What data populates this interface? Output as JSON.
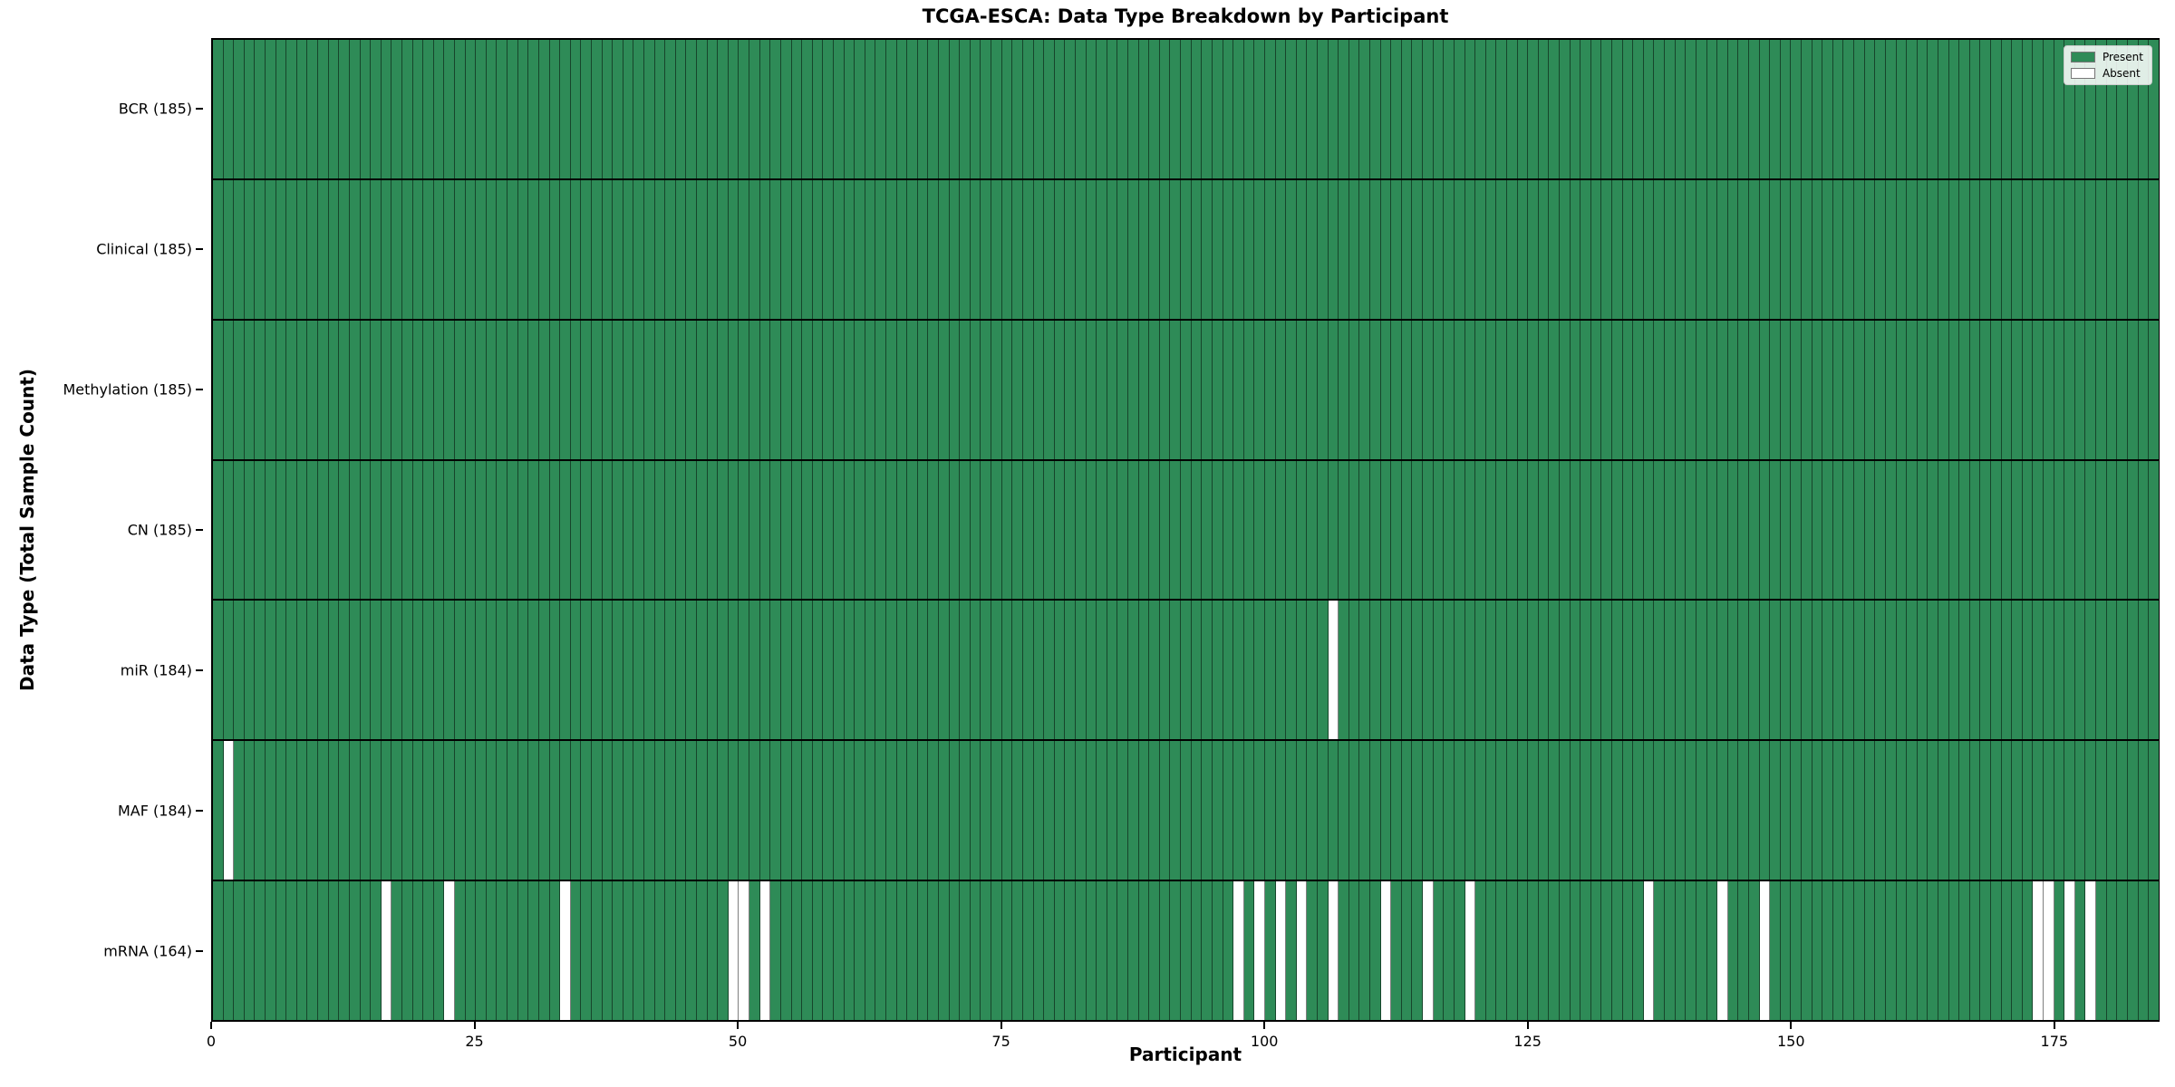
{
  "chart_data": {
    "type": "heatmap",
    "title": "TCGA-ESCA: Data Type Breakdown by Participant",
    "xlabel": "Participant",
    "ylabel": "Data Type (Total Sample Count)",
    "n_participants": 185,
    "x_ticks": [
      0,
      25,
      50,
      75,
      100,
      125,
      150,
      175
    ],
    "grid": "cell-borders",
    "legend_position": "upper-right",
    "legend": [
      {
        "label": "Present",
        "color": "#2e8b57"
      },
      {
        "label": "Absent",
        "color": "#ffffff"
      }
    ],
    "rows": [
      {
        "label": "BCR (185)",
        "total": 185,
        "absent_participants": []
      },
      {
        "label": "Clinical (185)",
        "total": 185,
        "absent_participants": []
      },
      {
        "label": "Methylation (185)",
        "total": 185,
        "absent_participants": []
      },
      {
        "label": "CN (185)",
        "total": 185,
        "absent_participants": []
      },
      {
        "label": "miR (184)",
        "total": 184,
        "absent_participants": [
          106
        ]
      },
      {
        "label": "MAF (184)",
        "total": 184,
        "absent_participants": [
          1
        ]
      },
      {
        "label": "mRNA (164)",
        "total": 164,
        "absent_participants": [
          16,
          22,
          33,
          49,
          50,
          52,
          97,
          99,
          101,
          103,
          106,
          111,
          115,
          119,
          136,
          143,
          147,
          173,
          174,
          176,
          178
        ]
      }
    ]
  }
}
